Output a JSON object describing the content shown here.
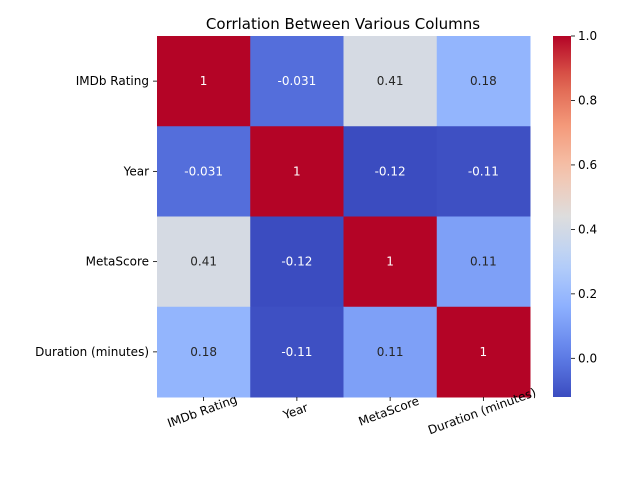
{
  "chart_data": {
    "type": "heatmap",
    "title": "Corrlation Between Various Columns",
    "rows": [
      "IMDb Rating",
      "Year",
      "MetaScore",
      "Duration (minutes)"
    ],
    "columns": [
      "IMDb Rating",
      "Year",
      "MetaScore",
      "Duration (minutes)"
    ],
    "values": [
      [
        1,
        -0.031,
        0.41,
        0.18
      ],
      [
        -0.031,
        1,
        -0.12,
        -0.11
      ],
      [
        0.41,
        -0.12,
        1,
        0.11
      ],
      [
        0.18,
        -0.11,
        0.11,
        1
      ]
    ],
    "annotations": [
      [
        "1",
        "-0.031",
        "0.41",
        "0.18"
      ],
      [
        "-0.031",
        "1",
        "-0.12",
        "-0.11"
      ],
      [
        "0.41",
        "-0.12",
        "1",
        "0.11"
      ],
      [
        "0.18",
        "-0.11",
        "0.11",
        "1"
      ]
    ],
    "colormap": "coolwarm",
    "colorbar": {
      "vmin": -0.12,
      "vmax": 1.0,
      "ticks": [
        1.0,
        0.8,
        0.6,
        0.4,
        0.2,
        0.0
      ],
      "tick_labels": [
        "1.0",
        "0.8",
        "0.6",
        "0.4",
        "0.2",
        "0.0"
      ]
    },
    "x_tick_rotation_deg": 20
  }
}
